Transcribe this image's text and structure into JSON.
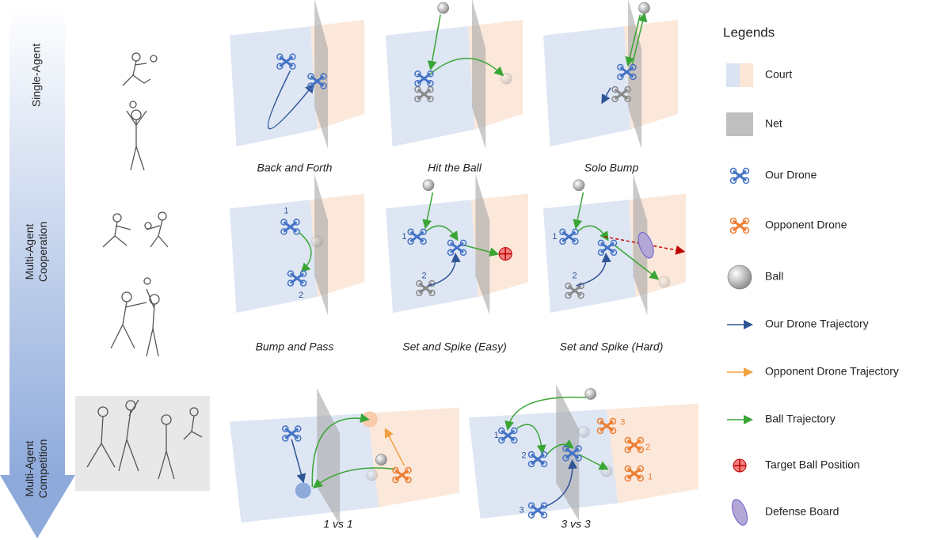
{
  "rows": [
    {
      "lines": [
        "Single-Agent"
      ]
    },
    {
      "lines": [
        "Multi-Agent",
        "Cooperation"
      ]
    },
    {
      "lines": [
        "Multi-Agent",
        "Competition"
      ]
    }
  ],
  "tasks": [
    {
      "caption": "Back and Forth"
    },
    {
      "caption": "Hit the Ball"
    },
    {
      "caption": "Solo Bump"
    },
    {
      "caption": "Bump and Pass",
      "markers": [
        "1",
        "2"
      ]
    },
    {
      "caption": "Set and Spike (Easy)",
      "markers": [
        "1",
        "2"
      ]
    },
    {
      "caption": "Set and Spike (Hard)",
      "markers": [
        "1",
        "2"
      ]
    },
    {
      "caption": "1 vs 1"
    },
    {
      "caption": "3 vs 3",
      "markers": [
        "1",
        "2",
        "3",
        "3",
        "2",
        "1"
      ]
    }
  ],
  "legend": {
    "title": "Legends",
    "items": [
      "Court",
      "Net",
      "Our Drone",
      "Opponent Drone",
      "Ball",
      "Our Drone Trajectory",
      "Opponent Drone Trajectory",
      "Ball Trajectory",
      "Target Ball Position",
      "Defense Board"
    ]
  }
}
